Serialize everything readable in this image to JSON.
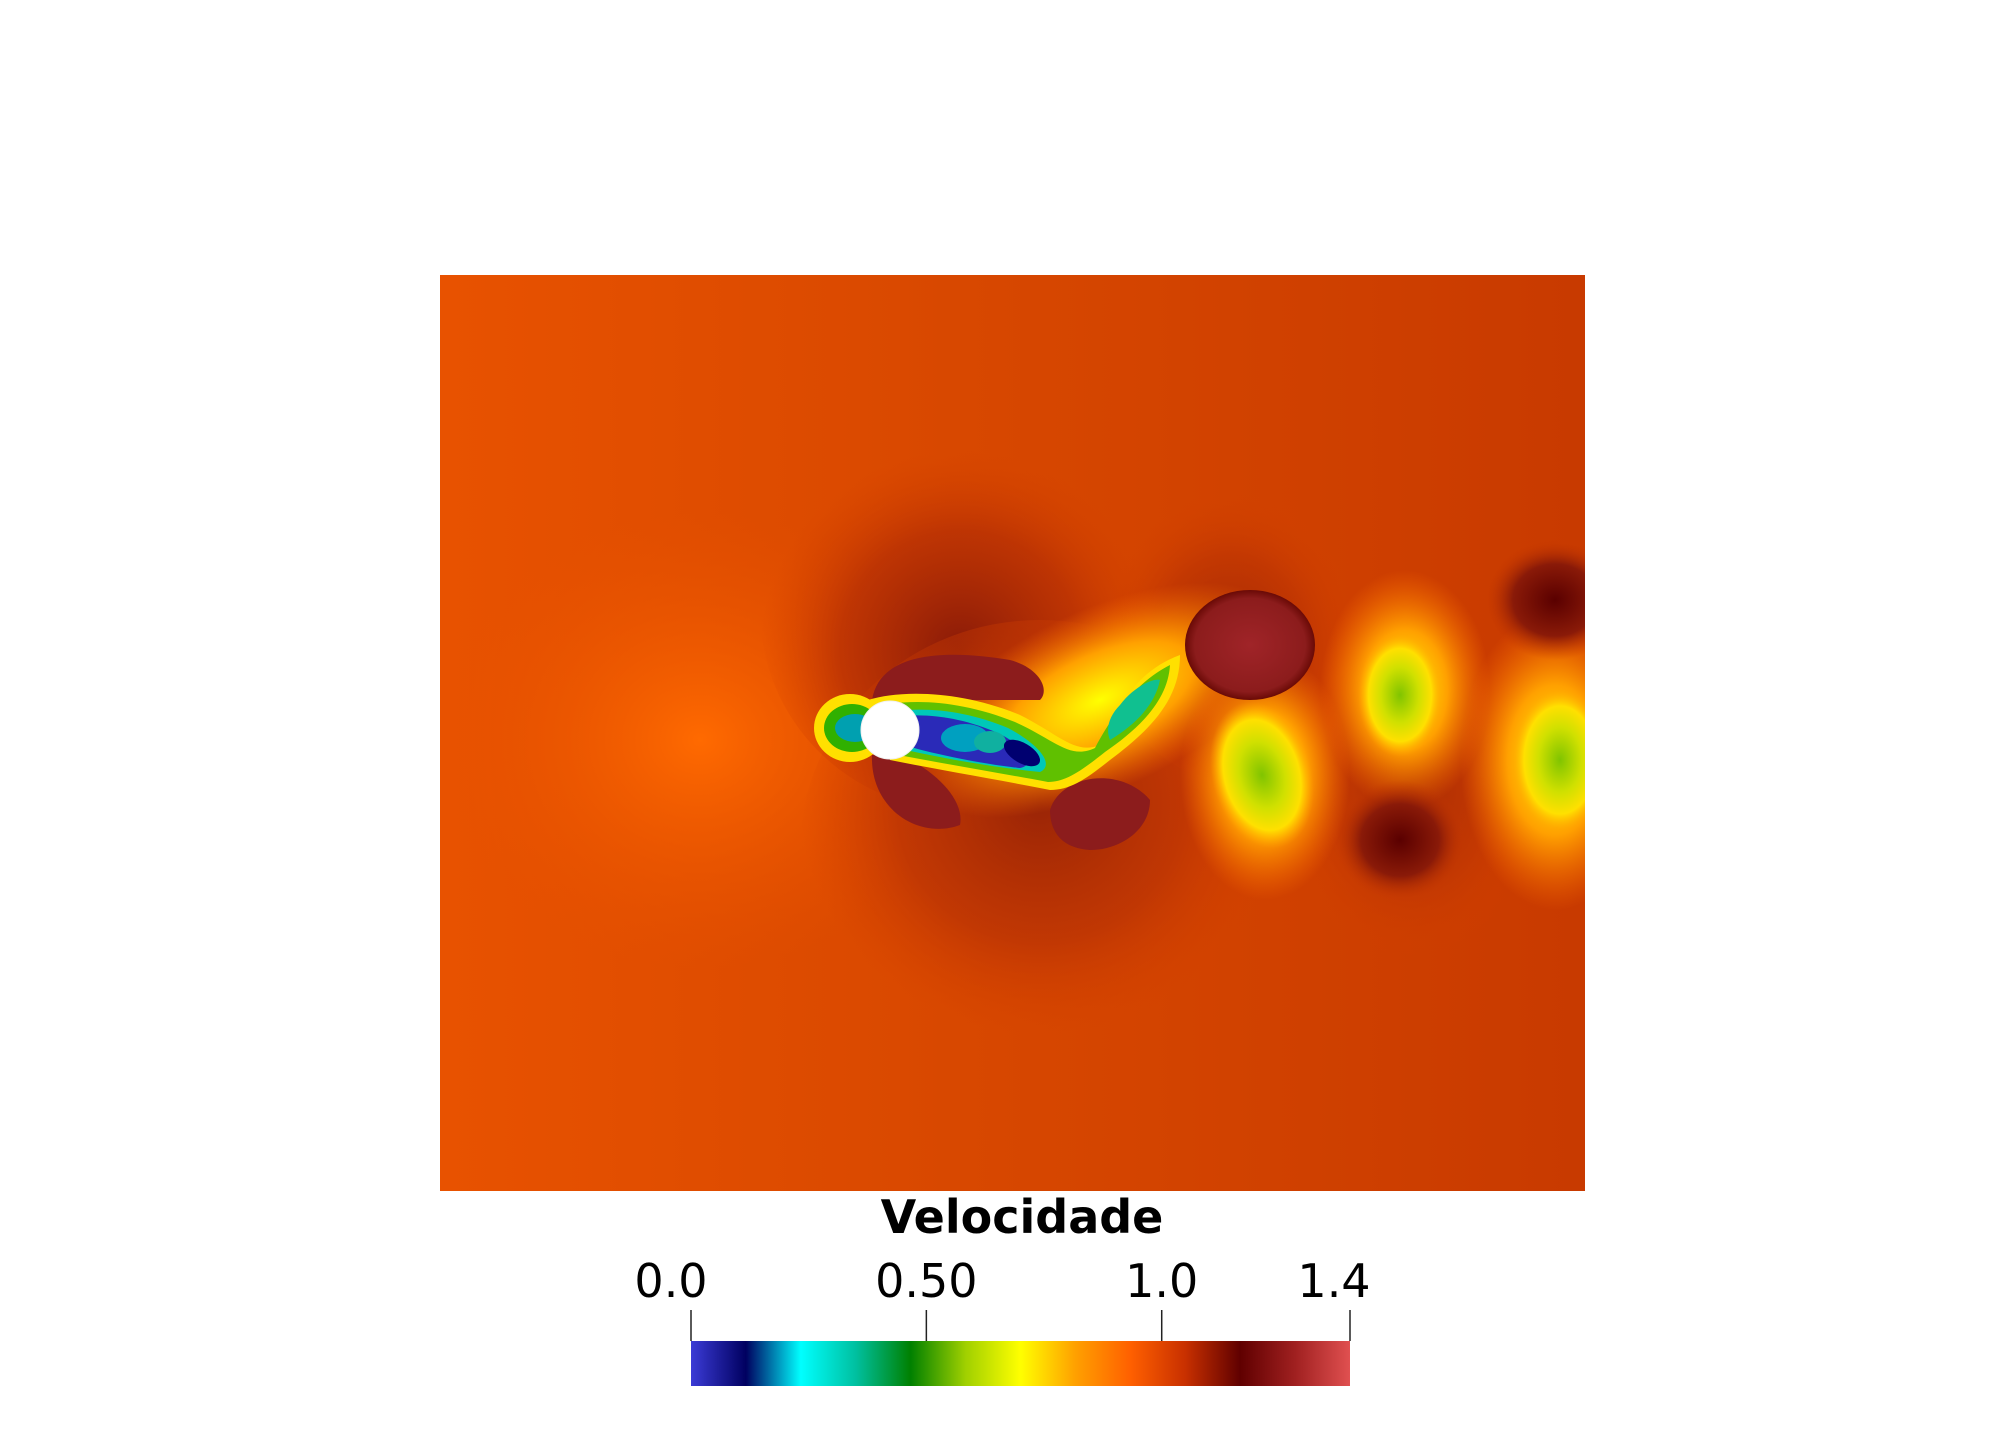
{
  "colorbar": {
    "title": "Velocidade",
    "range": [
      0.0,
      1.4
    ],
    "ticks": [
      {
        "value": 0.0,
        "label": "0.0"
      },
      {
        "value": 0.5,
        "label": "0.50"
      },
      {
        "value": 1.0,
        "label": "1.0"
      },
      {
        "value": 1.4,
        "label": "1.4"
      }
    ],
    "colormap": [
      "#3b3bd6",
      "#000060",
      "#00ffff",
      "#00c0a0",
      "#008000",
      "#a0d000",
      "#ffff00",
      "#ffa000",
      "#ff6000",
      "#c83000",
      "#600000",
      "#a02020",
      "#e05050"
    ]
  },
  "colors": {
    "background": "#ffffff",
    "cylinder": "#ffffff"
  }
}
